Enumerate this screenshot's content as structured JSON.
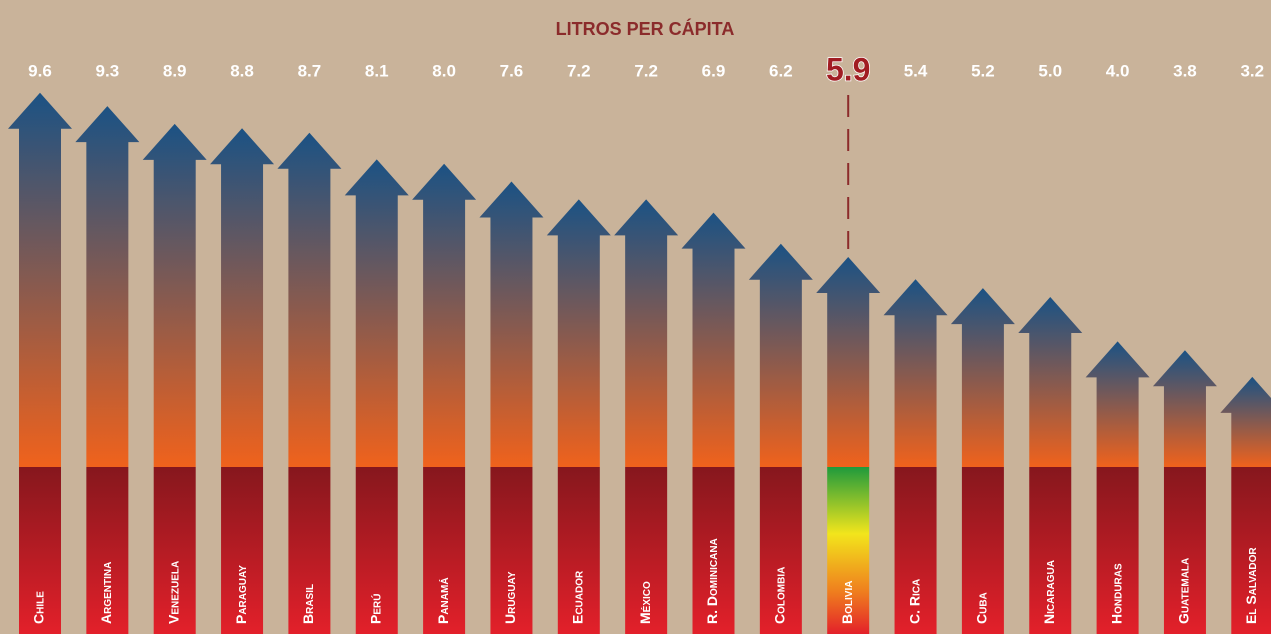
{
  "chart_data": {
    "type": "arrow-bar",
    "title": "LITROS PER CÁPITA",
    "categories": [
      "Chile",
      "Argentina",
      "Venezuela",
      "Paraguay",
      "Brasil",
      "Perú",
      "Panamá",
      "Uruguay",
      "Ecuador",
      "México",
      "R. Dominicana",
      "Colombia",
      "Bolivia",
      "C. Rica",
      "Cuba",
      "Nicaragua",
      "Honduras",
      "Guatemala",
      "El Salvador"
    ],
    "values": [
      9.6,
      9.3,
      8.9,
      8.8,
      8.7,
      8.1,
      8.0,
      7.6,
      7.2,
      7.2,
      6.9,
      6.2,
      5.9,
      5.4,
      5.2,
      5.0,
      4.0,
      3.8,
      3.2
    ],
    "value_labels": [
      "9.6",
      "9.3",
      "8.9",
      "8.8",
      "8.7",
      "8.1",
      "8.0",
      "7.6",
      "7.2",
      "7.2",
      "6.9",
      "6.2",
      "5.9",
      "5.4",
      "5.2",
      "5.0",
      "4.0",
      "3.8",
      "3.2"
    ],
    "highlight": "Bolivia",
    "ylim": [
      0,
      10
    ],
    "color_top": "#1b5284",
    "color_bottom": "#f0621c",
    "base_color": "#b01c24"
  }
}
